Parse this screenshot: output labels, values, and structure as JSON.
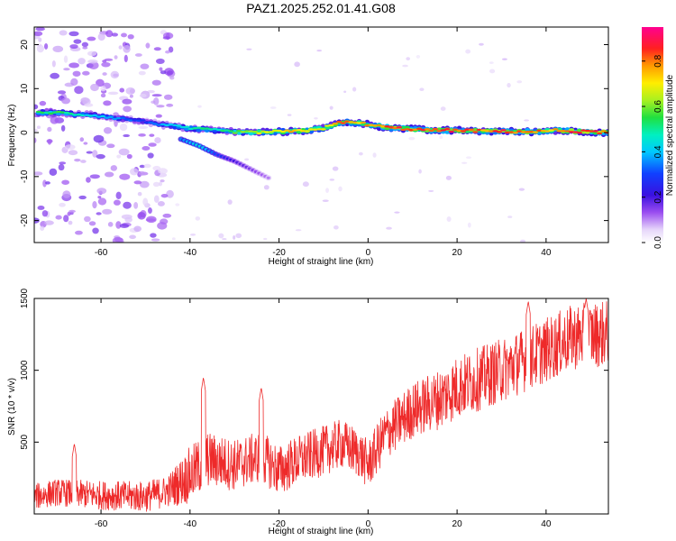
{
  "title": "PAZ1.2025.252.01.41.G08",
  "colors": {
    "snr_line": "#ee2a2a",
    "ridge_peak": "#e8202a",
    "scatter_purple": "#b488f0"
  },
  "chart_data": [
    {
      "type": "heatmap",
      "name": "spectrogram",
      "xlabel": "Height of straight line (km)",
      "ylabel": "Frequency (Hz)",
      "xlim": [
        -75,
        54
      ],
      "ylim": [
        -25,
        24
      ],
      "xticks": [
        -60,
        -40,
        -20,
        0,
        20,
        40
      ],
      "yticks": [
        -20,
        -10,
        0,
        10,
        20
      ],
      "xtick_labels": [
        "-60",
        "-40",
        "-20",
        "0",
        "20",
        "40"
      ],
      "ytick_labels": [
        "-20",
        "-10",
        "0",
        "10",
        "20"
      ],
      "colorbar": {
        "label": "Normalized spectral amplitude",
        "range": [
          0.0,
          0.95
        ],
        "ticks": [
          0.0,
          0.2,
          0.4,
          0.6,
          0.8
        ],
        "tick_labels": [
          "0.0",
          "0.2",
          "0.4",
          "0.6",
          "0.8"
        ],
        "colormap": "rainbow (purple → blue → cyan → green → yellow → red → magenta)"
      },
      "main_ridge": {
        "x": [
          -74,
          -70,
          -66,
          -62,
          -58,
          -54,
          -50,
          -46,
          -42,
          -38,
          -34,
          -30,
          -26,
          -22,
          -18,
          -14,
          -10,
          -6,
          -2,
          2,
          6,
          10,
          14,
          18,
          22,
          26,
          30,
          34,
          38,
          42,
          46,
          50,
          54
        ],
        "freq": [
          4.5,
          4.6,
          4.2,
          4.0,
          3.5,
          3.0,
          2.5,
          1.8,
          1.2,
          0.8,
          0.5,
          0.2,
          0.0,
          0.2,
          0.2,
          0.5,
          1.0,
          2.4,
          2.2,
          1.5,
          1.0,
          0.8,
          0.5,
          0.5,
          0.5,
          0.3,
          0.3,
          0.2,
          0.2,
          0.5,
          0.3,
          0.2,
          0.0
        ],
        "amplitude": [
          0.55,
          0.6,
          0.5,
          0.45,
          0.4,
          0.35,
          0.3,
          0.4,
          0.5,
          0.55,
          0.5,
          0.6,
          0.7,
          0.75,
          0.8,
          0.8,
          0.75,
          0.85,
          0.8,
          0.85,
          0.9,
          0.9,
          0.88,
          0.9,
          0.88,
          0.85,
          0.9,
          0.88,
          0.85,
          0.8,
          0.9,
          0.92,
          0.9
        ]
      },
      "secondary_branch": {
        "x": [
          -42,
          -38,
          -34,
          -30,
          -26,
          -22
        ],
        "freq": [
          -1.5,
          -3.0,
          -5.0,
          -6.5,
          -8.5,
          -10.5
        ],
        "amplitude": [
          0.35,
          0.45,
          0.3,
          0.2,
          0.15,
          0.1
        ]
      },
      "noise_region": {
        "x_range": [
          -75,
          -44
        ],
        "freq_range": [
          -25,
          24
        ],
        "amplitude": 0.05
      }
    },
    {
      "type": "line",
      "name": "snr",
      "xlabel": "Height of straight line (km)",
      "ylabel": "SNR (10 * v/v)",
      "xlim": [
        -75,
        54
      ],
      "ylim": [
        0,
        1500
      ],
      "xticks": [
        -60,
        -40,
        -20,
        0,
        20,
        40
      ],
      "yticks": [
        500,
        1000,
        1500
      ],
      "xtick_labels": [
        "-60",
        "-40",
        "-20",
        "0",
        "20",
        "40"
      ],
      "ytick_labels": [
        "500",
        "1000",
        "1500"
      ],
      "trend": {
        "x": [
          -75,
          -70,
          -60,
          -50,
          -45,
          -40,
          -36,
          -30,
          -24,
          -20,
          -16,
          -10,
          -6,
          -2,
          0,
          4,
          10,
          16,
          20,
          30,
          40,
          46,
          54
        ],
        "snr": [
          120,
          150,
          130,
          120,
          160,
          270,
          380,
          340,
          400,
          300,
          370,
          440,
          490,
          420,
          340,
          560,
          720,
          800,
          880,
          1000,
          1140,
          1230,
          1260
        ]
      },
      "noise_amplitude": [
        {
          "x": -75,
          "amp": 90
        },
        {
          "x": -45,
          "amp": 110
        },
        {
          "x": -40,
          "amp": 200
        },
        {
          "x": -30,
          "amp": 180
        },
        {
          "x": 0,
          "amp": 170
        },
        {
          "x": 20,
          "amp": 220
        },
        {
          "x": 54,
          "amp": 230
        }
      ],
      "peaks": [
        {
          "x": -66,
          "snr": 490
        },
        {
          "x": -37,
          "snr": 950
        },
        {
          "x": -24,
          "snr": 880
        },
        {
          "x": 36,
          "snr": 1480
        },
        {
          "x": 49,
          "snr": 1500
        }
      ]
    }
  ]
}
